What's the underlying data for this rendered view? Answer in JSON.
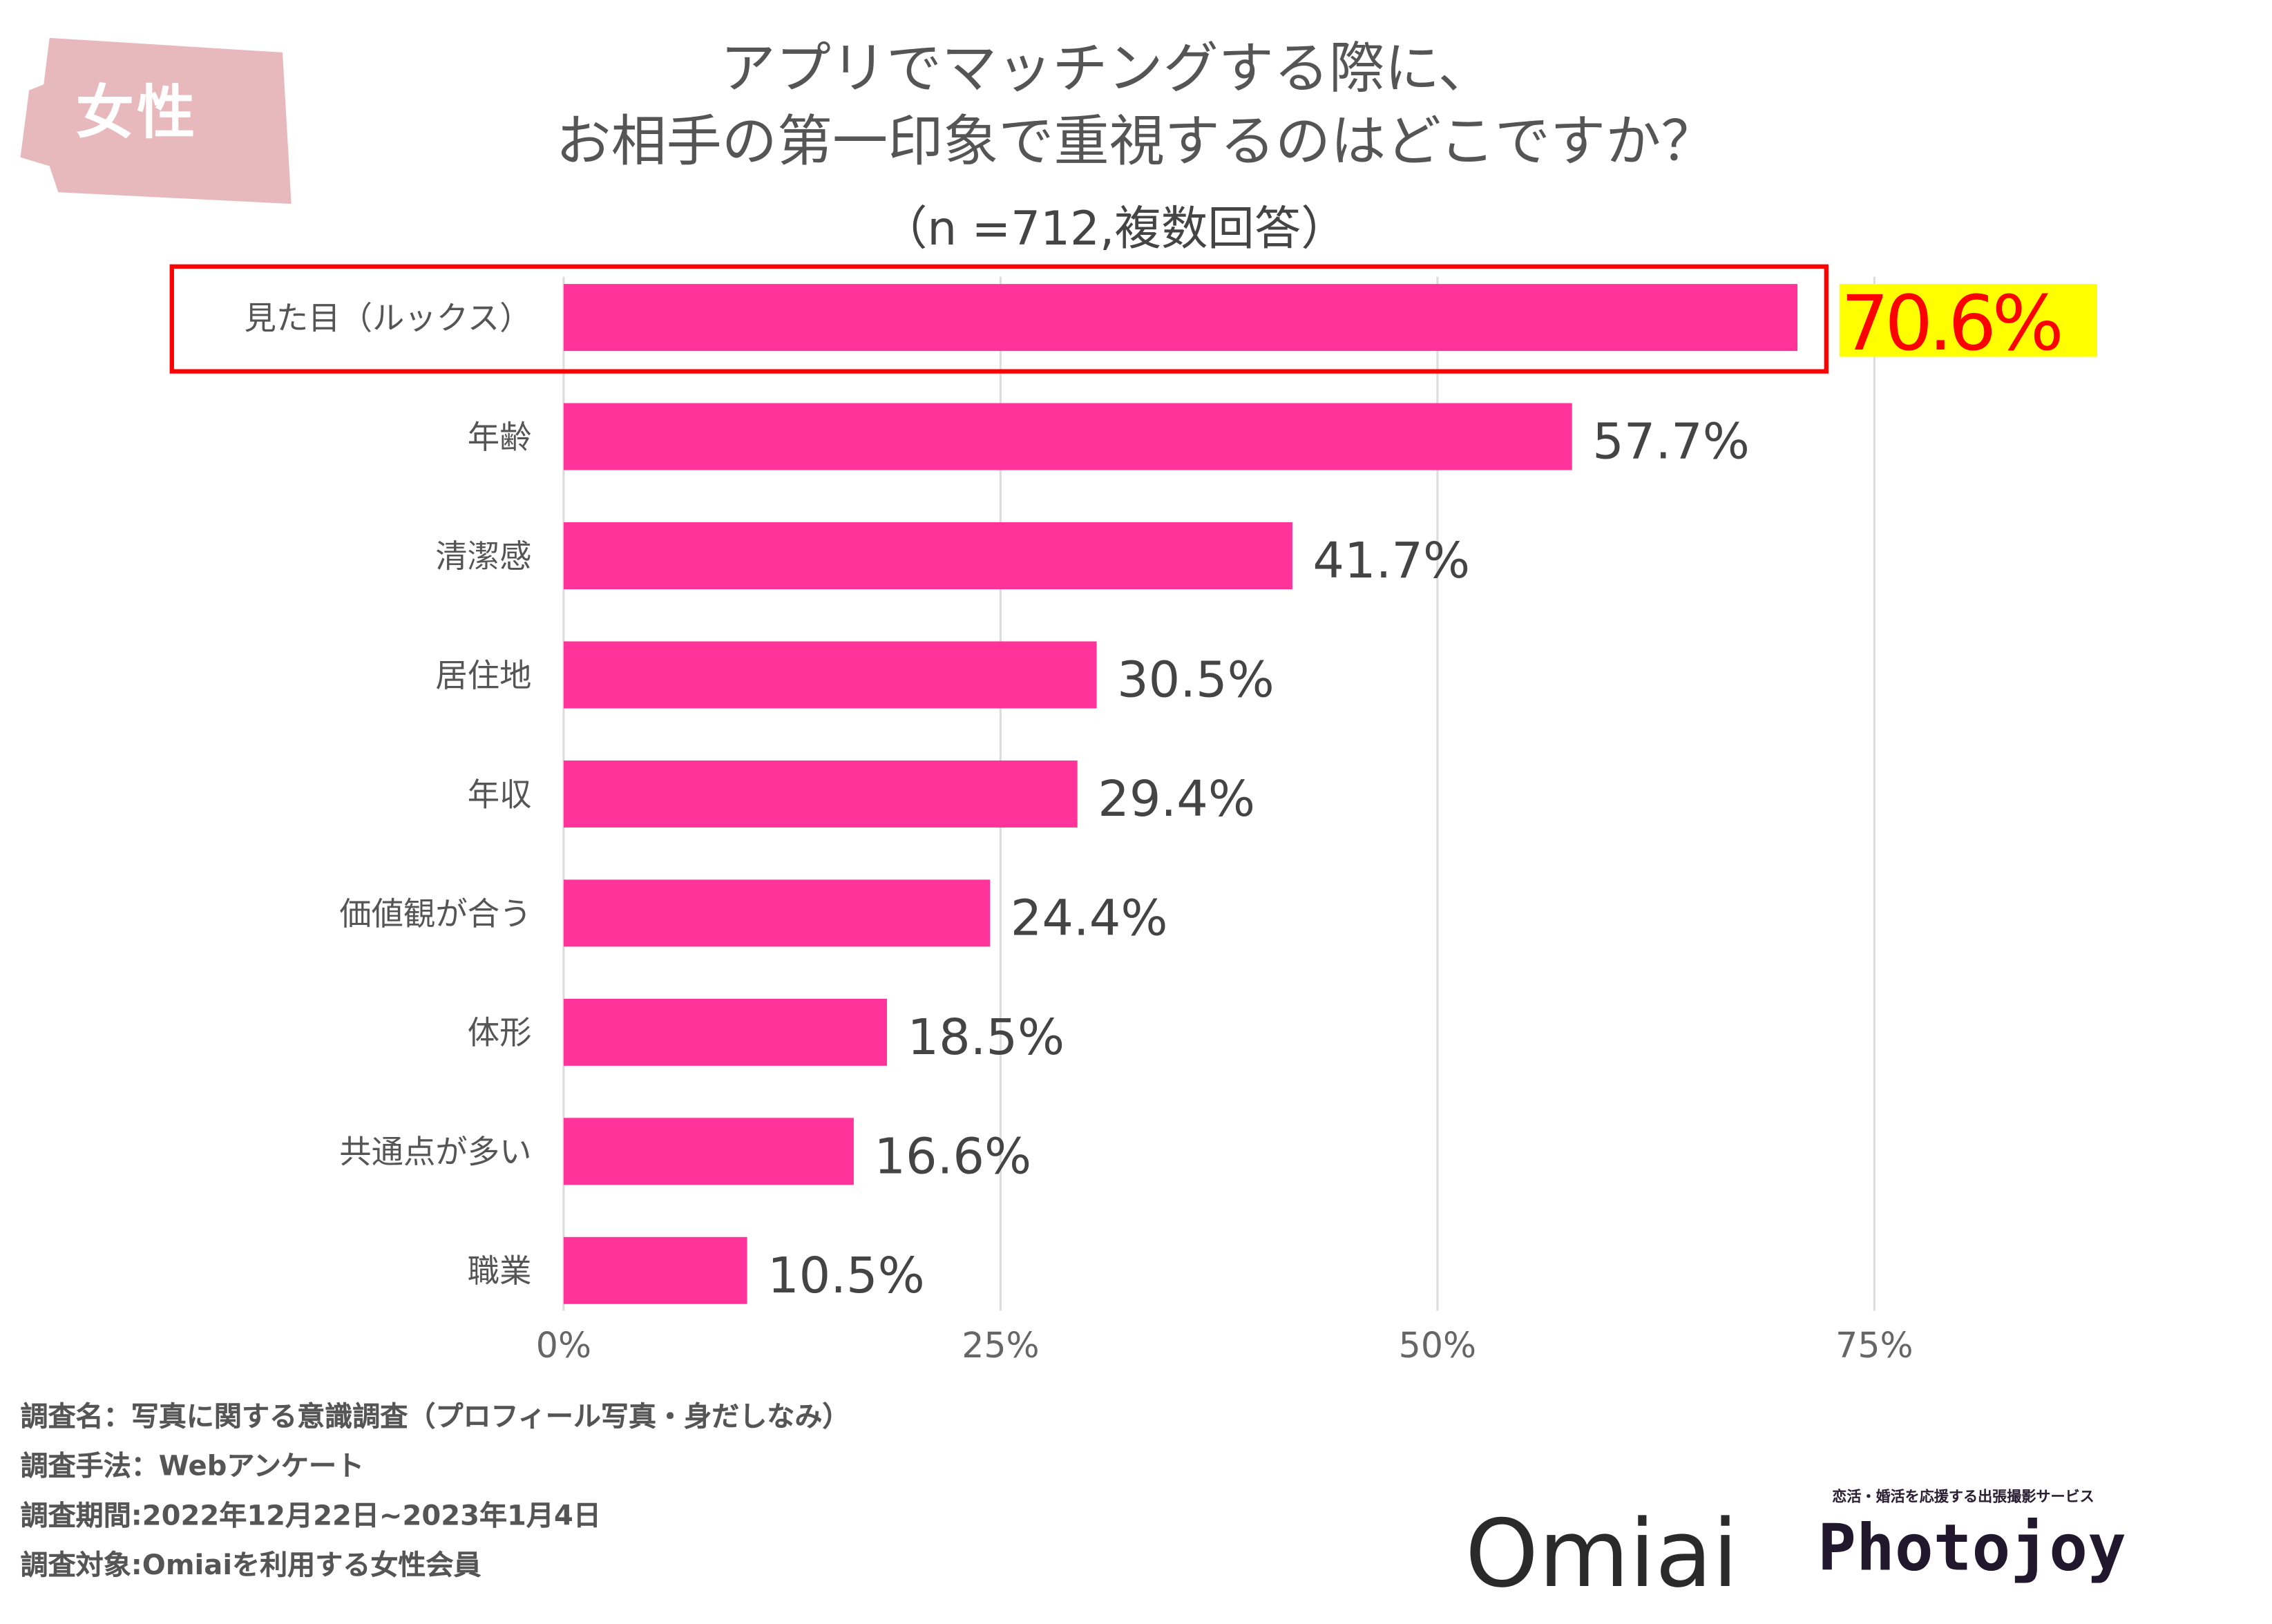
{
  "badge": {
    "label": "女性",
    "color": "#e8b9bc"
  },
  "chart_data": {
    "type": "bar",
    "orientation": "horizontal",
    "title": [
      "アプリでマッチングする際に、",
      "お相手の第一印象で重視するのはどこですか？"
    ],
    "subtitle": "（n =712,複数回答）",
    "categories": [
      "見た目（ルックス）",
      "年齢",
      "清潔感",
      "居住地",
      "年収",
      "価値観が合う",
      "体形",
      "共通点が多い",
      "職業"
    ],
    "values": [
      70.6,
      57.7,
      41.7,
      30.5,
      29.4,
      24.4,
      18.5,
      16.6,
      10.5
    ],
    "value_labels": [
      "70.6%",
      "57.7%",
      "41.7%",
      "30.5%",
      "29.4%",
      "24.4%",
      "18.5%",
      "16.6%",
      "10.5%"
    ],
    "xlim": [
      0,
      75
    ],
    "xticks": [
      "0%",
      "25%",
      "50%",
      "75%"
    ],
    "xtick_values": [
      0,
      25,
      50,
      75
    ],
    "grid": true,
    "bar_color": "#ff3399",
    "highlight": {
      "index": 0,
      "box_color": "#ff0000",
      "label_color": "#ff0000",
      "label_bg": "#ffff00"
    }
  },
  "footer": [
    "調査名：写真に関する意識調査（プロフィール写真・身だしなみ）",
    "調査手法：Webアンケート",
    "調査期間:2022年12月22日~2023年1月4日",
    "調査対象:Omiaiを利用する女性会員"
  ],
  "logos": {
    "omiai": "Omiai",
    "photojoy_tagline": "恋活・婚活を応援する出張撮影サービス",
    "photojoy": "Photojoy"
  }
}
